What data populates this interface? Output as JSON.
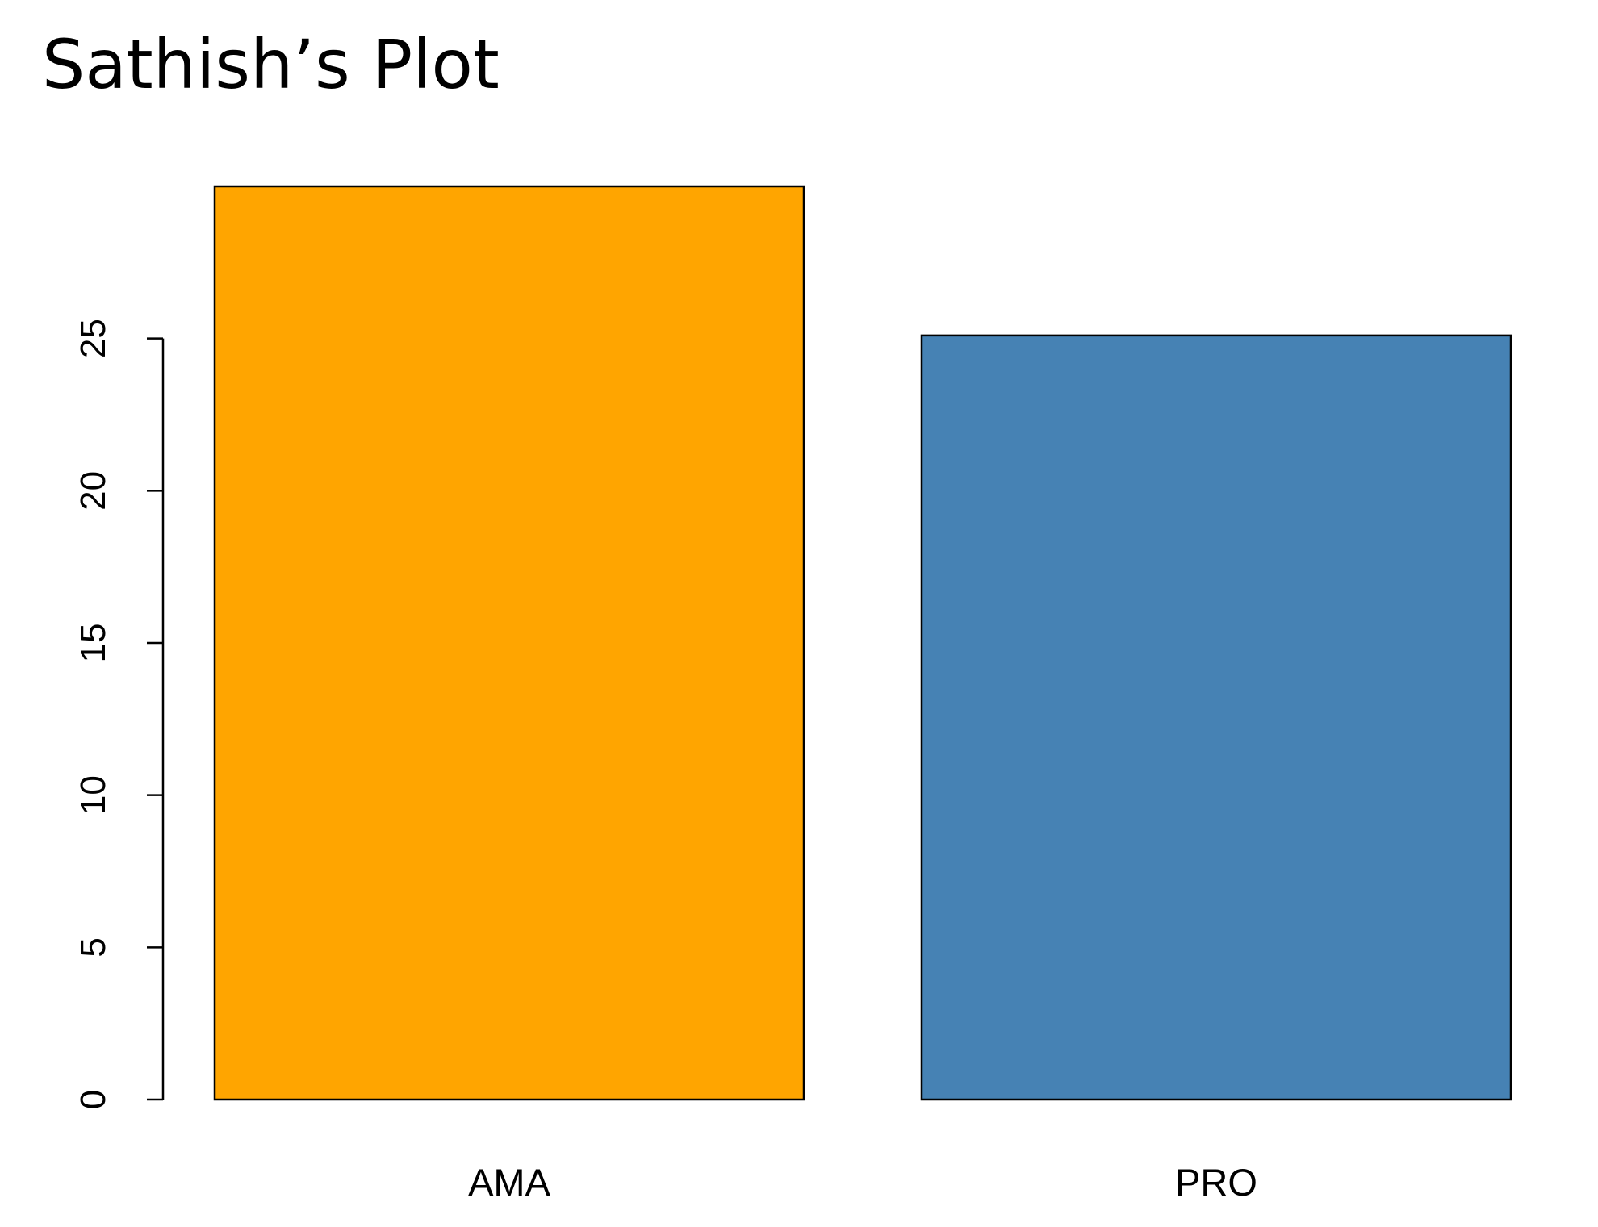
{
  "chart_data": {
    "type": "bar",
    "title": "Sathish’s Plot",
    "categories": [
      "AMA",
      "PRO"
    ],
    "values": [
      30,
      25.1
    ],
    "colors": [
      "#FFA500",
      "#4682B4"
    ],
    "bar_border_color": "#000000",
    "xlabel": "",
    "ylabel": "",
    "ylim": [
      0,
      30
    ],
    "yticks": [
      0,
      5,
      10,
      15,
      20,
      25
    ],
    "grid": false,
    "legend": "none"
  }
}
